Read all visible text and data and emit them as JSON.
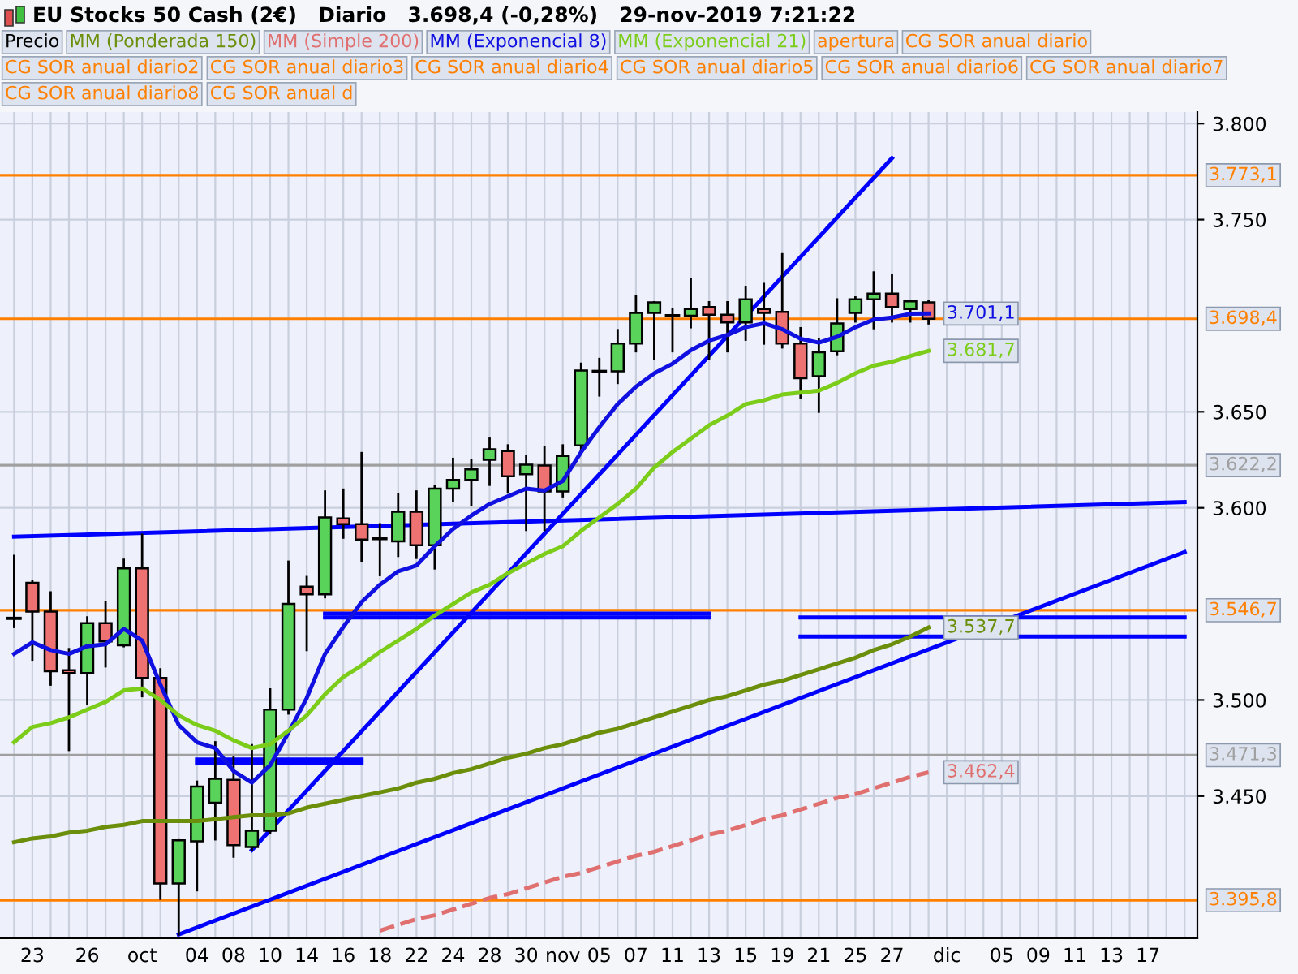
{
  "chart_data": {
    "type": "candlestick",
    "title": "EU Stocks 50 Cash (2€)   Diario   3.698,4 (-0,28%)   29-nov-2019 7:21:22",
    "categories": [
      null,
      "23",
      null,
      null,
      "26",
      null,
      null,
      "oct",
      null,
      null,
      "04",
      null,
      "08",
      null,
      "10",
      null,
      "14",
      null,
      "16",
      null,
      "18",
      null,
      "22",
      null,
      "24",
      null,
      "28",
      null,
      "30",
      null,
      "nov",
      null,
      "05",
      null,
      "07",
      null,
      "11",
      null,
      "13",
      null,
      "15",
      null,
      "19",
      null,
      "21",
      null,
      "25",
      null,
      "27",
      null,
      null,
      "dic",
      null,
      null,
      "05",
      null,
      "09",
      null,
      "11",
      null,
      "13",
      null,
      "17",
      null,
      null
    ],
    "ylim": [
      3376,
      3806
    ],
    "yticks": [
      {
        "value": 3450,
        "label": "3.450"
      },
      {
        "value": 3500,
        "label": "3.500"
      },
      {
        "value": 3600,
        "label": "3.600"
      },
      {
        "value": 3650,
        "label": "3.650"
      },
      {
        "value": 3750,
        "label": "3.750"
      },
      {
        "value": 3800,
        "label": "3.800"
      }
    ],
    "grid": true,
    "legend": "top left",
    "series": [
      {
        "name": "Precio",
        "color": "#000000",
        "ohlc": [
          [
            3542.5,
            3575,
            3538,
            3542.5
          ],
          [
            3561,
            3562,
            3521,
            3546
          ],
          [
            3546,
            3556,
            3508,
            3515
          ],
          [
            3515.5,
            3526.5,
            3474,
            3514
          ],
          [
            3514,
            3543,
            3498,
            3540
          ],
          [
            3540,
            3551,
            3517.5,
            3530.5
          ],
          [
            3528.5,
            3573,
            3528,
            3568.5
          ],
          [
            3568.5,
            3586,
            3502,
            3511.5
          ],
          [
            3511.5,
            3516,
            3396.5,
            3404.5
          ],
          [
            3404.5,
            3427,
            3378,
            3427
          ],
          [
            3426.5,
            3457.5,
            3401,
            3455
          ],
          [
            3446.5,
            3478,
            3427.5,
            3459
          ],
          [
            3458.5,
            3470,
            3418.5,
            3424.5
          ],
          [
            3423.5,
            3476.5,
            3422,
            3432
          ],
          [
            3432,
            3505.5,
            3431,
            3495
          ],
          [
            3495,
            3572,
            3493,
            3550
          ],
          [
            3559,
            3564,
            3526,
            3555
          ],
          [
            3555,
            3608.5,
            3553.5,
            3595
          ],
          [
            3594.5,
            3609.5,
            3584.5,
            3591.5
          ],
          [
            3591.5,
            3628.5,
            3572.5,
            3583.5
          ],
          [
            3584,
            3591.5,
            3565,
            3583.5
          ],
          [
            3582.5,
            3607,
            3575,
            3598
          ],
          [
            3598,
            3608.5,
            3574,
            3580.5
          ],
          [
            3580.5,
            3611.5,
            3568.5,
            3610
          ],
          [
            3610,
            3625.5,
            3603.5,
            3614.5
          ],
          [
            3614.5,
            3625,
            3601.5,
            3620
          ],
          [
            3625,
            3636,
            3612,
            3630.5
          ],
          [
            3629.5,
            3632.5,
            3608,
            3616.5
          ],
          [
            3617.5,
            3627,
            3588.5,
            3622.5
          ],
          [
            3622,
            3631.5,
            3588.5,
            3608.5
          ],
          [
            3608.5,
            3632.5,
            3606,
            3627
          ],
          [
            3632.5,
            3675,
            3630,
            3671.5
          ],
          [
            3671,
            3677.5,
            3658.5,
            3671
          ],
          [
            3671,
            3692.5,
            3665,
            3685.5
          ],
          [
            3685.5,
            3710,
            3681.5,
            3701.5
          ],
          [
            3701.5,
            3707,
            3677.5,
            3707
          ],
          [
            3700,
            3703.5,
            3681.5,
            3700
          ],
          [
            3700,
            3719,
            3694,
            3703.5
          ],
          [
            3704.5,
            3707,
            3677.5,
            3700.5
          ],
          [
            3700.5,
            3707,
            3681.5,
            3696.5
          ],
          [
            3696.5,
            3715,
            3687.5,
            3708.5
          ],
          [
            3703.5,
            3716.5,
            3685.5,
            3701.5
          ],
          [
            3702,
            3732,
            3683.5,
            3685.5
          ],
          [
            3685.5,
            3693.5,
            3657.5,
            3667.5
          ],
          [
            3668.5,
            3688,
            3650,
            3681
          ],
          [
            3681.5,
            3708.5,
            3680,
            3696
          ],
          [
            3701.5,
            3709.5,
            3697,
            3708.5
          ],
          [
            3708.5,
            3722.5,
            3693.5,
            3711.5
          ],
          [
            3711.5,
            3721,
            3697,
            3704.5
          ],
          [
            3703.5,
            3707.5,
            3697,
            3707.5
          ],
          [
            3707,
            3707.5,
            3696,
            3698.4
          ],
          null,
          null,
          null,
          null,
          null,
          null,
          null,
          null,
          null,
          null,
          null,
          null,
          null,
          null
        ],
        "colors": [
          "#000000",
          "#ee7272",
          "#ee7272",
          "#ee7272",
          "#5ad35a",
          "#ee7272",
          "#5ad35a",
          "#ee7272",
          "#ee7272",
          "#5ad35a",
          "#5ad35a",
          "#5ad35a",
          "#ee7272",
          "#5ad35a",
          "#5ad35a",
          "#5ad35a",
          "#ee7272",
          "#5ad35a",
          "#ee7272",
          "#ee7272",
          "#000000",
          "#5ad35a",
          "#ee7272",
          "#5ad35a",
          "#5ad35a",
          "#5ad35a",
          "#5ad35a",
          "#ee7272",
          "#5ad35a",
          "#ee7272",
          "#5ad35a",
          "#5ad35a",
          "#000000",
          "#5ad35a",
          "#5ad35a",
          "#5ad35a",
          "#000000",
          "#5ad35a",
          "#ee7272",
          "#ee7272",
          "#5ad35a",
          "#ee7272",
          "#ee7272",
          "#ee7272",
          "#5ad35a",
          "#5ad35a",
          "#5ad35a",
          "#5ad35a",
          "#ee7272",
          "#5ad35a",
          "#ee7272",
          null,
          null,
          null,
          null,
          null,
          null,
          null,
          null,
          null,
          null,
          null,
          null,
          null,
          null
        ]
      },
      {
        "name": "MM (Ponderada 150)",
        "type": "line",
        "color": "#6b8e0b",
        "values": [
          3426,
          3428,
          3429,
          3431,
          3432,
          3434,
          3435,
          3437,
          3437,
          3437,
          3437,
          3438,
          3439,
          3440,
          3440,
          3441,
          3444,
          3446,
          3448,
          3450,
          3452,
          3454,
          3457,
          3459,
          3462,
          3464,
          3467,
          3470,
          3472,
          3475,
          3477,
          3480,
          3483,
          3485,
          3488,
          3491,
          3494,
          3497,
          3500,
          3502,
          3505,
          3508,
          3510,
          3513,
          3516,
          3519,
          3522,
          3526,
          3529,
          3533,
          3537.7,
          null,
          null,
          null,
          null,
          null,
          null,
          null,
          null,
          null,
          null,
          null,
          null,
          null,
          null
        ],
        "value_labels": [
          null,
          null,
          null,
          null,
          null,
          null,
          null,
          null,
          null,
          null,
          null,
          null,
          null,
          null,
          null,
          null,
          null,
          null,
          null,
          null,
          null,
          null,
          null,
          null,
          null,
          null,
          null,
          null,
          null,
          null,
          null,
          null,
          null,
          null,
          null,
          null,
          null,
          null,
          null,
          null,
          null,
          null,
          null,
          null,
          null,
          null,
          null,
          null,
          null,
          null,
          "3.537,7",
          null,
          null,
          null,
          null,
          null,
          null,
          null,
          null,
          null,
          null,
          null,
          null,
          null,
          null
        ]
      },
      {
        "name": "MM (Simple 200)",
        "type": "line",
        "line_style": "dashed",
        "color": "#e07070",
        "values": [
          null,
          null,
          null,
          null,
          null,
          null,
          null,
          null,
          null,
          null,
          null,
          null,
          null,
          null,
          null,
          null,
          null,
          null,
          null,
          null,
          3380,
          3383,
          3386,
          3388,
          3391,
          3394,
          3397,
          3399,
          3402,
          3405,
          3408,
          3410,
          3413,
          3416,
          3419,
          3421,
          3424,
          3427,
          3430,
          3432,
          3435,
          3438,
          3440,
          3443,
          3446,
          3449,
          3451,
          3454,
          3457,
          3460,
          3462.4,
          null,
          null,
          null,
          null,
          null,
          null,
          null,
          null,
          null,
          null,
          null,
          null,
          null,
          null
        ],
        "value_labels": [
          null,
          null,
          null,
          null,
          null,
          null,
          null,
          null,
          null,
          null,
          null,
          null,
          null,
          null,
          null,
          null,
          null,
          null,
          null,
          null,
          null,
          null,
          null,
          null,
          null,
          null,
          null,
          null,
          null,
          null,
          null,
          null,
          null,
          null,
          null,
          null,
          null,
          null,
          null,
          null,
          null,
          null,
          null,
          null,
          null,
          null,
          null,
          null,
          null,
          null,
          "3.462,4",
          null,
          null,
          null,
          null,
          null,
          null,
          null,
          null,
          null,
          null,
          null,
          null,
          null,
          null
        ]
      },
      {
        "name": "MM (Exponencial 8)",
        "type": "line",
        "color": "#1010e0",
        "values": [
          3524,
          3530,
          3526,
          3524,
          3528,
          3529,
          3537,
          3531,
          3508,
          3487,
          3478,
          3475,
          3463,
          3457,
          3466,
          3483,
          3501,
          3524,
          3538,
          3551,
          3560,
          3567,
          3570,
          3580,
          3589,
          3596,
          3602,
          3606,
          3610,
          3609,
          3614,
          3629,
          3642,
          3654,
          3663,
          3670,
          3675,
          3682,
          3687,
          3690,
          3694,
          3696,
          3693,
          3688,
          3686,
          3689,
          3694,
          3698,
          3699,
          3701,
          3701.1,
          null,
          null,
          null,
          null,
          null,
          null,
          null,
          null,
          null,
          null,
          null,
          null,
          null,
          null
        ],
        "value_labels": [
          null,
          null,
          null,
          null,
          null,
          null,
          null,
          null,
          null,
          null,
          null,
          null,
          null,
          null,
          null,
          null,
          null,
          null,
          null,
          null,
          null,
          null,
          null,
          null,
          null,
          null,
          null,
          null,
          null,
          null,
          null,
          null,
          null,
          null,
          null,
          null,
          null,
          null,
          null,
          null,
          null,
          null,
          null,
          null,
          null,
          null,
          null,
          null,
          null,
          null,
          "3.701,1",
          null,
          null,
          null,
          null,
          null,
          null,
          null,
          null,
          null,
          null,
          null,
          null,
          null,
          null
        ]
      },
      {
        "name": "MM (Exponencial 21)",
        "type": "line",
        "color": "#7ccc1a",
        "values": [
          3478,
          3486,
          3488,
          3491,
          3495,
          3499,
          3505,
          3506,
          3500,
          3492,
          3487,
          3484,
          3479,
          3475,
          3477,
          3484,
          3492,
          3503,
          3512,
          3518,
          3525,
          3531,
          3537,
          3544,
          3550,
          3556,
          3560,
          3566,
          3571,
          3576,
          3580,
          3588,
          3595,
          3602,
          3610,
          3621,
          3629,
          3636,
          3643,
          3648,
          3654,
          3656,
          3659,
          3660,
          3661,
          3665,
          3670,
          3674,
          3676,
          3679,
          3681.7,
          null,
          null,
          null,
          null,
          null,
          null,
          null,
          null,
          null,
          null,
          null,
          null,
          null,
          null
        ],
        "value_labels": [
          null,
          null,
          null,
          null,
          null,
          null,
          null,
          null,
          null,
          null,
          null,
          null,
          null,
          null,
          null,
          null,
          null,
          null,
          null,
          null,
          null,
          null,
          null,
          null,
          null,
          null,
          null,
          null,
          null,
          null,
          null,
          null,
          null,
          null,
          null,
          null,
          null,
          null,
          null,
          null,
          null,
          null,
          null,
          null,
          null,
          null,
          null,
          null,
          null,
          null,
          "3.681,7",
          null,
          null,
          null,
          null,
          null,
          null,
          null,
          null,
          null,
          null,
          null,
          null,
          null,
          null
        ]
      },
      {
        "type": "line",
        "color": "#0000ff",
        "values": [
          null,
          null,
          null,
          null,
          null,
          null,
          null,
          null,
          null,
          null,
          null,
          null,
          null,
          3422,
          null,
          null,
          null,
          null,
          null,
          null,
          null,
          null,
          null,
          null,
          null,
          null,
          null,
          null,
          null,
          null,
          null,
          null,
          null,
          null,
          null,
          null,
          null,
          null,
          null,
          null,
          null,
          null,
          null,
          null,
          null,
          null,
          null,
          null,
          3782,
          null,
          null,
          null,
          null,
          null,
          null,
          null,
          null,
          null,
          null,
          null,
          null,
          null,
          null,
          null,
          null
        ]
      },
      {
        "type": "line",
        "color": "#0000ff",
        "values": [
          3585,
          null,
          null,
          null,
          null,
          null,
          null,
          null,
          null,
          null,
          null,
          null,
          null,
          null,
          null,
          null,
          null,
          null,
          null,
          null,
          null,
          null,
          null,
          null,
          null,
          null,
          null,
          null,
          null,
          null,
          null,
          null,
          null,
          null,
          null,
          null,
          null,
          null,
          null,
          null,
          null,
          null,
          null,
          null,
          null,
          null,
          null,
          null,
          null,
          null,
          null,
          null,
          null,
          null,
          null,
          null,
          null,
          null,
          null,
          null,
          null,
          null,
          null,
          null,
          3603
        ]
      },
      {
        "type": "line",
        "color": "#0000ff",
        "values": [
          null,
          null,
          null,
          null,
          null,
          null,
          null,
          null,
          null,
          3378,
          null,
          null,
          null,
          null,
          null,
          null,
          null,
          null,
          null,
          null,
          null,
          null,
          null,
          null,
          null,
          null,
          null,
          null,
          null,
          null,
          null,
          null,
          null,
          null,
          null,
          null,
          null,
          null,
          null,
          null,
          null,
          null,
          null,
          null,
          null,
          null,
          null,
          null,
          null,
          null,
          null,
          null,
          null,
          null,
          null,
          null,
          null,
          null,
          null,
          null,
          null,
          null,
          null,
          null,
          3577
        ]
      },
      {
        "type": "line",
        "color": "#0000ff",
        "values": [
          null,
          null,
          null,
          null,
          null,
          null,
          null,
          null,
          null,
          null,
          3469,
          null,
          null,
          null,
          null,
          null,
          null,
          null,
          null,
          3469,
          null,
          null,
          null,
          null,
          null,
          null,
          null,
          null,
          null,
          null,
          null,
          null,
          null,
          null,
          null,
          null,
          null,
          null,
          null,
          null,
          null,
          null,
          null,
          null,
          null,
          null,
          null,
          null,
          null,
          null,
          null,
          null,
          null,
          null,
          null,
          null,
          null,
          null,
          null,
          null,
          null,
          null,
          null,
          null,
          null
        ]
      },
      {
        "type": "line",
        "color": "#0000ff",
        "values": [
          null,
          null,
          null,
          null,
          null,
          null,
          null,
          null,
          null,
          null,
          3467,
          null,
          null,
          null,
          null,
          null,
          null,
          null,
          null,
          3467,
          null,
          null,
          null,
          null,
          null,
          null,
          null,
          null,
          null,
          null,
          null,
          null,
          null,
          null,
          null,
          null,
          null,
          null,
          null,
          null,
          null,
          null,
          null,
          null,
          null,
          null,
          null,
          null,
          null,
          null,
          null,
          null,
          null,
          null,
          null,
          null,
          null,
          null,
          null,
          null,
          null,
          null,
          null,
          null,
          null
        ]
      },
      {
        "type": "line",
        "color": "#0000ff",
        "values": [
          null,
          null,
          null,
          null,
          null,
          null,
          null,
          null,
          null,
          null,
          null,
          null,
          null,
          null,
          null,
          null,
          null,
          3545,
          null,
          null,
          null,
          null,
          null,
          null,
          null,
          null,
          null,
          null,
          null,
          null,
          null,
          null,
          null,
          null,
          null,
          null,
          null,
          null,
          3545,
          null,
          null,
          null,
          null,
          null,
          null,
          null,
          null,
          null,
          null,
          null,
          null,
          null,
          null,
          null,
          null,
          null,
          null,
          null,
          null,
          null,
          null,
          null,
          null,
          null,
          null
        ]
      },
      {
        "type": "line",
        "color": "#0000ff",
        "values": [
          null,
          null,
          null,
          null,
          null,
          null,
          null,
          null,
          null,
          null,
          null,
          null,
          null,
          null,
          null,
          null,
          null,
          3543,
          null,
          null,
          null,
          null,
          null,
          null,
          null,
          null,
          null,
          null,
          null,
          null,
          null,
          null,
          null,
          null,
          null,
          null,
          null,
          null,
          3543,
          null,
          null,
          null,
          null,
          null,
          null,
          null,
          null,
          null,
          null,
          null,
          null,
          null,
          null,
          null,
          null,
          null,
          null,
          null,
          null,
          null,
          null,
          null,
          null,
          null,
          null
        ]
      },
      {
        "type": "line",
        "color": "#0000ff",
        "values": [
          null,
          null,
          null,
          null,
          null,
          null,
          null,
          null,
          null,
          null,
          null,
          null,
          null,
          null,
          null,
          null,
          null,
          null,
          null,
          null,
          null,
          null,
          null,
          null,
          null,
          null,
          null,
          null,
          null,
          null,
          null,
          null,
          null,
          null,
          null,
          null,
          null,
          null,
          null,
          null,
          null,
          null,
          null,
          3543,
          null,
          null,
          null,
          null,
          null,
          null,
          null,
          null,
          null,
          null,
          null,
          null,
          null,
          null,
          null,
          null,
          null,
          null,
          null,
          null,
          3543
        ]
      },
      {
        "type": "line",
        "color": "#0000ff",
        "values": [
          null,
          null,
          null,
          null,
          null,
          null,
          null,
          null,
          null,
          null,
          null,
          null,
          null,
          null,
          null,
          null,
          null,
          null,
          null,
          null,
          null,
          null,
          null,
          null,
          null,
          null,
          null,
          null,
          null,
          null,
          null,
          null,
          null,
          null,
          null,
          null,
          null,
          null,
          null,
          null,
          null,
          null,
          null,
          3533,
          null,
          null,
          null,
          null,
          null,
          null,
          null,
          null,
          null,
          null,
          null,
          null,
          null,
          null,
          null,
          null,
          null,
          null,
          null,
          null,
          3533
        ]
      }
    ],
    "ref_lines": [
      {
        "axis": "y",
        "value": 3773.1,
        "label": "3.773,1",
        "color": "#ff8000"
      },
      {
        "axis": "y",
        "value": 3698.4,
        "label": "3.698,4",
        "color": "#ff8000"
      },
      {
        "axis": "y",
        "value": 3622.2,
        "label": "3.622,2",
        "color": "#a0a0a0"
      },
      {
        "axis": "y",
        "value": 3546.7,
        "label": "3.546,7",
        "color": "#ff8000"
      },
      {
        "axis": "y",
        "value": 3471.3,
        "label": "3.471,3",
        "color": "#a0a0a0"
      },
      {
        "axis": "y",
        "value": 3395.8,
        "label": "3.395,8",
        "color": "#ff8000"
      }
    ],
    "annotations": [
      "apertura",
      "CG SOR anual diario",
      "CG SOR anual diario2",
      "CG SOR anual diario3",
      "CG SOR anual diario4",
      "CG SOR anual diario5",
      "CG SOR anual diario6",
      "CG SOR anual diario7",
      "CG SOR anual diario8",
      "CG SOR anual d"
    ]
  }
}
